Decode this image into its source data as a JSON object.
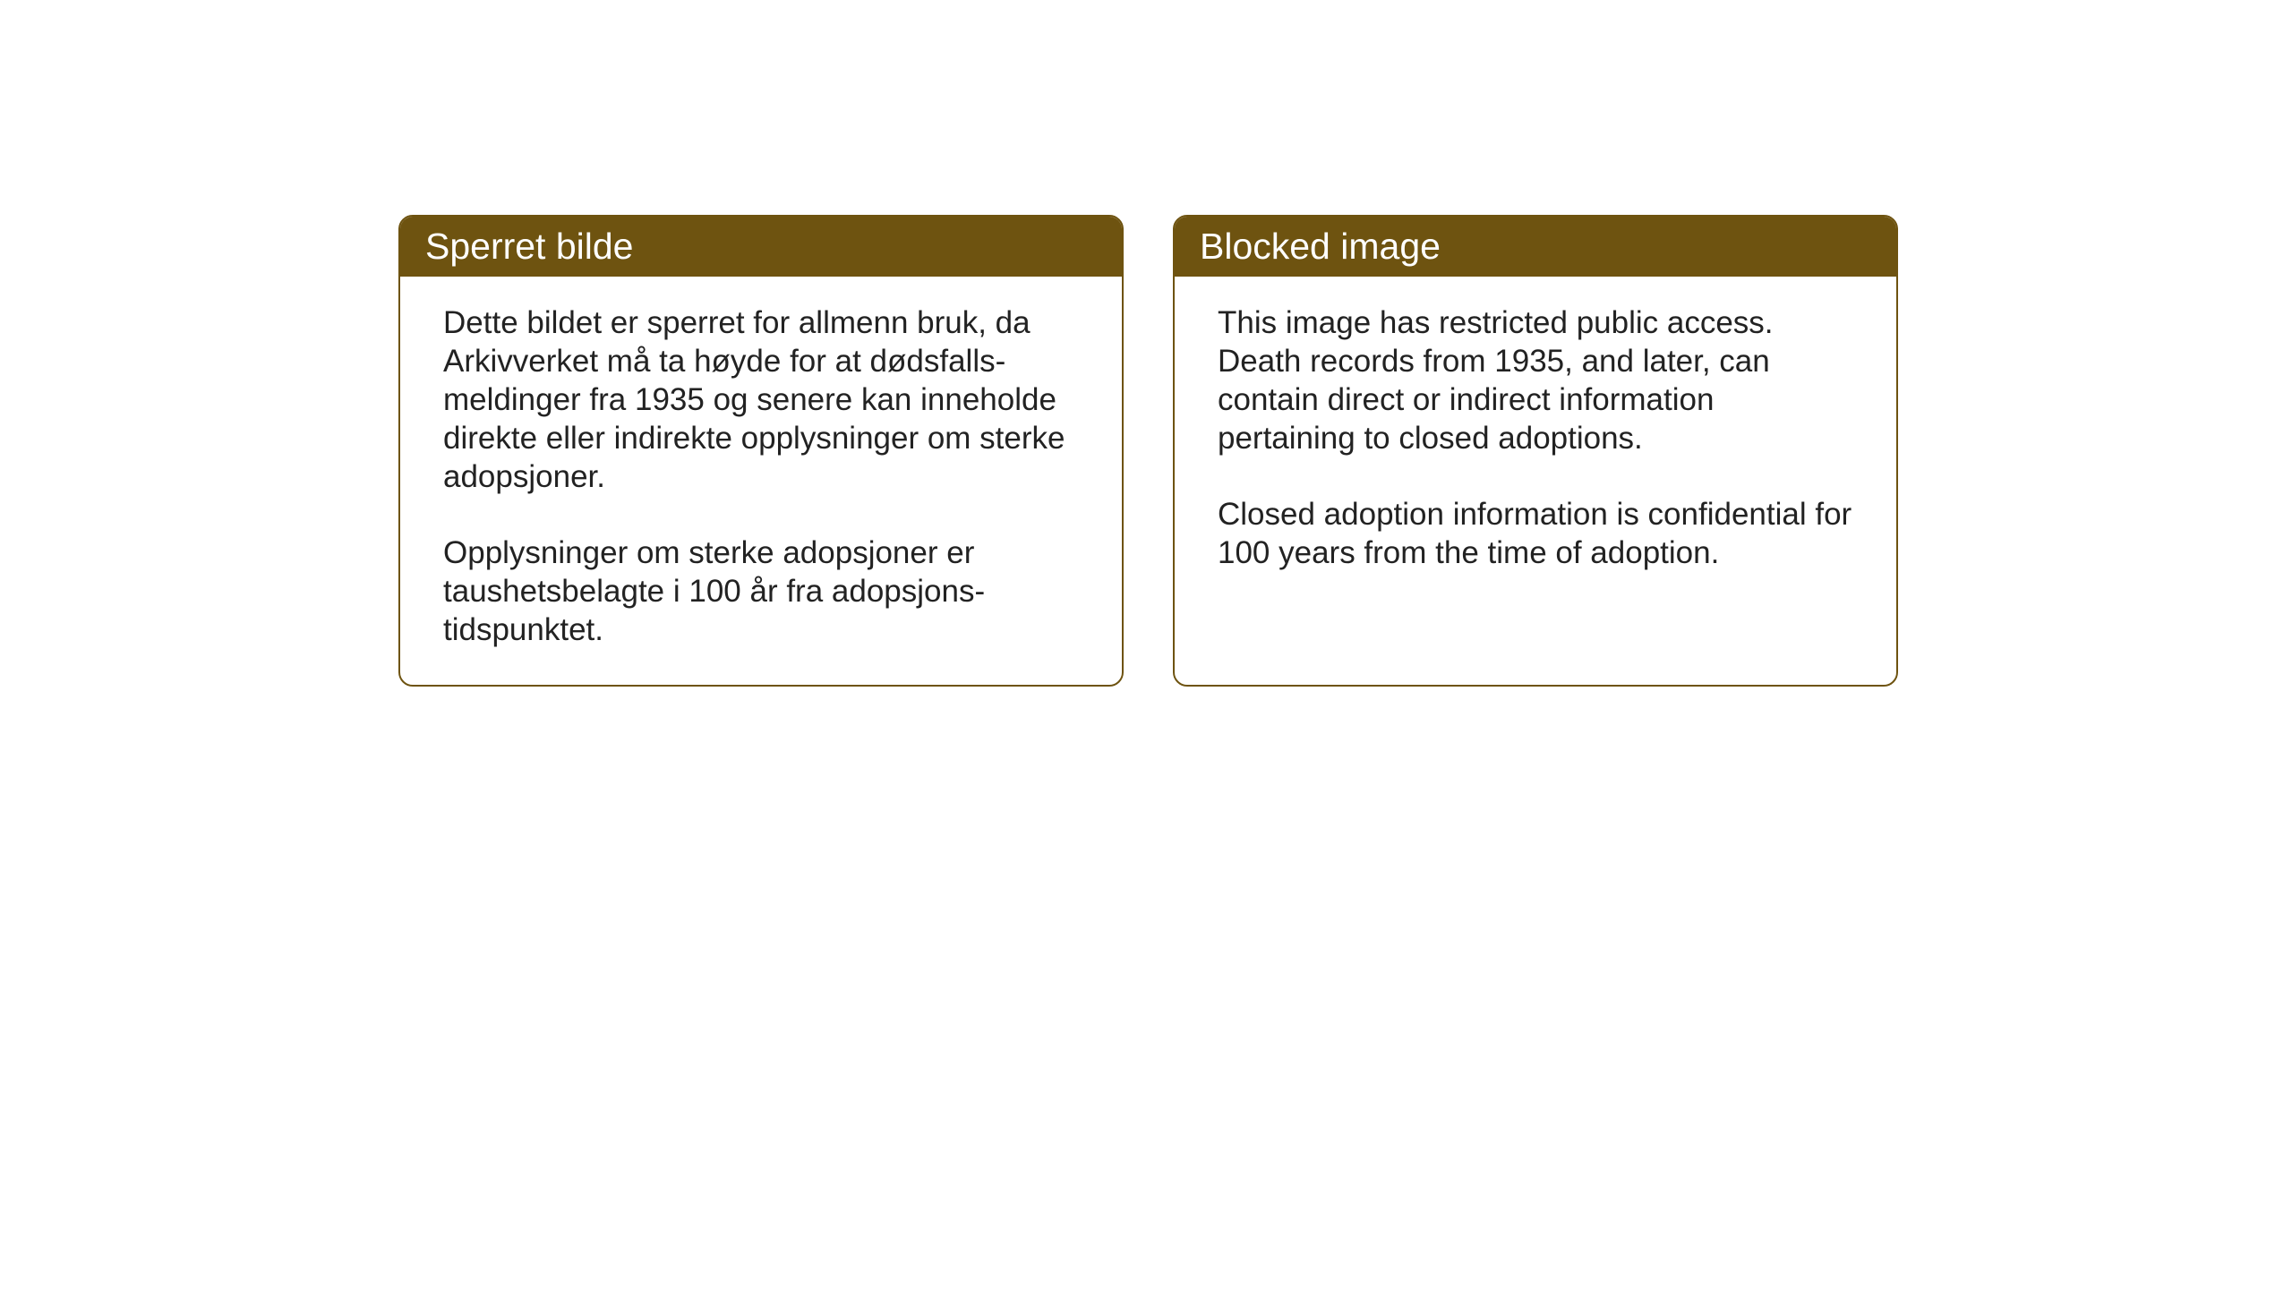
{
  "cards": {
    "norwegian": {
      "title": "Sperret bilde",
      "paragraph1": "Dette bildet er sperret for allmenn bruk, da Arkivverket må ta høyde for at dødsfalls-meldinger fra 1935 og senere kan inneholde direkte eller indirekte opplysninger om sterke adopsjoner.",
      "paragraph2": "Opplysninger om sterke adopsjoner er taushetsbelagte i 100 år fra adopsjons-tidspunktet."
    },
    "english": {
      "title": "Blocked image",
      "paragraph1": "This image has restricted public access. Death records from 1935, and later, can contain direct or indirect information pertaining to closed adoptions.",
      "paragraph2": "Closed adoption information is confidential for 100 years from the time of adoption."
    }
  },
  "style": {
    "header_background_color": "#6e5310",
    "header_text_color": "#ffffff",
    "border_color": "#6e5310",
    "body_text_color": "#222222",
    "card_background_color": "#ffffff",
    "page_background_color": "#ffffff",
    "title_fontsize": 41,
    "body_fontsize": 35,
    "border_radius": 16,
    "border_width": 2
  }
}
